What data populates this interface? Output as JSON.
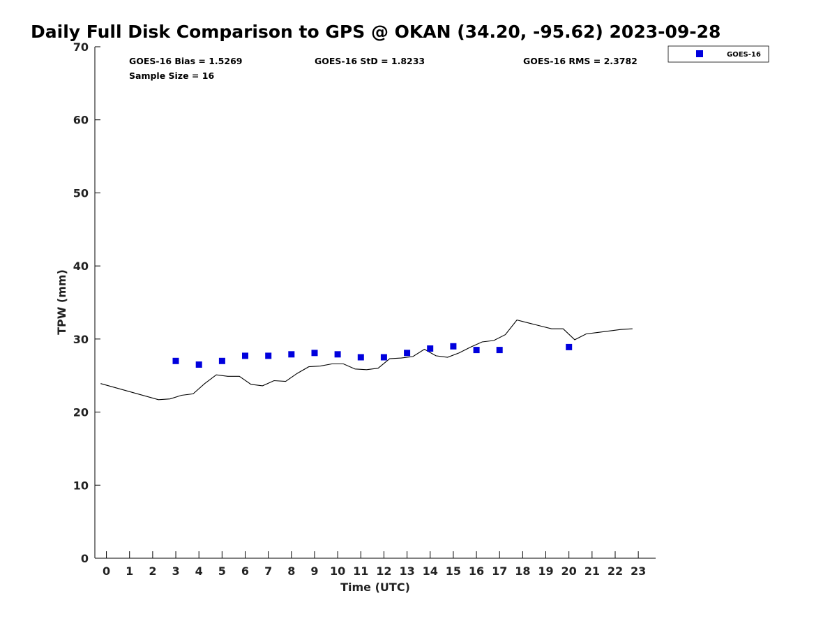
{
  "chart_data": {
    "type": "scatter",
    "title": "Daily Full Disk Comparison to GPS @ OKAN (34.20, -95.62) 2023-09-28",
    "xlabel": "Time (UTC)",
    "ylabel": "TPW (mm)",
    "xlim": [
      -0.5,
      23.75
    ],
    "ylim": [
      0,
      70
    ],
    "x_ticks": [
      "0",
      "1",
      "2",
      "3",
      "4",
      "5",
      "6",
      "7",
      "8",
      "9",
      "10",
      "11",
      "12",
      "13",
      "14",
      "15",
      "16",
      "17",
      "18",
      "19",
      "20",
      "21",
      "22",
      "23"
    ],
    "y_ticks": [
      "0",
      "10",
      "20",
      "30",
      "40",
      "50",
      "60",
      "70"
    ],
    "stats": {
      "bias": "GOES-16 Bias = 1.5269",
      "std": "GOES-16 StD = 1.8233",
      "rms": "GOES-16 RMS = 2.3782",
      "sample": "Sample Size = 16"
    },
    "legend": {
      "position": "top-right",
      "entries": [
        "GOES-16"
      ]
    },
    "series": [
      {
        "name": "GOES-16",
        "kind": "markers",
        "color": "#0000dd",
        "points": [
          [
            3,
            27.0
          ],
          [
            4,
            26.5
          ],
          [
            5,
            27.0
          ],
          [
            6,
            27.7
          ],
          [
            7,
            27.7
          ],
          [
            8,
            27.9
          ],
          [
            9,
            28.1
          ],
          [
            10,
            27.9
          ],
          [
            11,
            27.5
          ],
          [
            12,
            27.5
          ],
          [
            13,
            28.1
          ],
          [
            14,
            28.7
          ],
          [
            15,
            29.0
          ],
          [
            16,
            28.5
          ],
          [
            17,
            28.5
          ],
          [
            20,
            28.9
          ]
        ]
      },
      {
        "kind": "line",
        "color": "#000000",
        "points": [
          [
            -0.25,
            23.9
          ],
          [
            2.25,
            21.7
          ],
          [
            2.75,
            21.8
          ],
          [
            3.25,
            22.3
          ],
          [
            3.75,
            22.5
          ],
          [
            4.25,
            23.9
          ],
          [
            4.75,
            25.1
          ],
          [
            5.25,
            24.9
          ],
          [
            5.75,
            24.9
          ],
          [
            6.25,
            23.8
          ],
          [
            6.75,
            23.6
          ],
          [
            7.25,
            24.3
          ],
          [
            7.75,
            24.2
          ],
          [
            8.25,
            25.3
          ],
          [
            8.75,
            26.2
          ],
          [
            9.25,
            26.3
          ],
          [
            9.75,
            26.6
          ],
          [
            10.25,
            26.6
          ],
          [
            10.75,
            25.9
          ],
          [
            11.25,
            25.8
          ],
          [
            11.75,
            26.0
          ],
          [
            12.25,
            27.3
          ],
          [
            12.75,
            27.4
          ],
          [
            13.25,
            27.6
          ],
          [
            13.75,
            28.6
          ],
          [
            14.25,
            27.7
          ],
          [
            14.75,
            27.5
          ],
          [
            15.25,
            28.1
          ],
          [
            15.75,
            28.9
          ],
          [
            16.25,
            29.6
          ],
          [
            16.75,
            29.8
          ],
          [
            17.25,
            30.6
          ],
          [
            17.75,
            32.6
          ],
          [
            18.25,
            32.2
          ],
          [
            18.75,
            31.8
          ],
          [
            19.25,
            31.4
          ],
          [
            19.75,
            31.4
          ],
          [
            20.25,
            29.9
          ],
          [
            20.75,
            30.7
          ],
          [
            21.25,
            30.9
          ],
          [
            21.75,
            31.1
          ],
          [
            22.25,
            31.3
          ],
          [
            22.75,
            31.4
          ]
        ]
      }
    ]
  }
}
